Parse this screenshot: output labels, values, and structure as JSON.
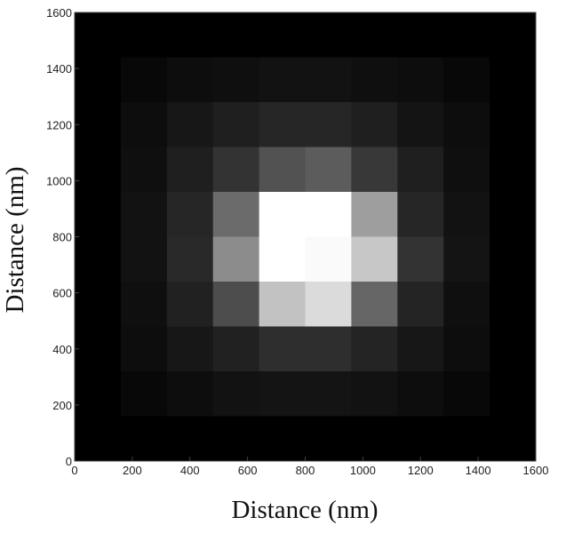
{
  "chart_data": {
    "type": "heatmap",
    "title": "",
    "xlabel": "Distance (nm)",
    "ylabel": "Distance (nm)",
    "xlim": [
      0,
      1600
    ],
    "ylim": [
      0,
      1600
    ],
    "x_ticks": [
      "0",
      "200",
      "400",
      "600",
      "800",
      "1000",
      "1200",
      "1400",
      "1600"
    ],
    "y_ticks": [
      "0",
      "200",
      "400",
      "600",
      "800",
      "1000",
      "1200",
      "1400",
      "1600"
    ],
    "grid": false,
    "legend": "none",
    "colormap": "gray",
    "cell_size_nm": 160,
    "x_centers": [
      80,
      240,
      400,
      560,
      720,
      880,
      1040,
      1200,
      1360,
      1520
    ],
    "y_centers": [
      1520,
      1360,
      1200,
      1040,
      880,
      720,
      560,
      400,
      240,
      80
    ],
    "intensity": [
      [
        0,
        0,
        0,
        0,
        0,
        0,
        0,
        0,
        0,
        0
      ],
      [
        0,
        3,
        5,
        6,
        7,
        7,
        6,
        5,
        3,
        0
      ],
      [
        0,
        5,
        9,
        12,
        15,
        15,
        12,
        8,
        5,
        0
      ],
      [
        0,
        6,
        12,
        20,
        32,
        36,
        22,
        12,
        6,
        0
      ],
      [
        0,
        7,
        15,
        42,
        100,
        100,
        62,
        15,
        7,
        0
      ],
      [
        0,
        7,
        16,
        55,
        100,
        98,
        78,
        20,
        8,
        0
      ],
      [
        0,
        6,
        13,
        30,
        76,
        86,
        40,
        14,
        6,
        0
      ],
      [
        0,
        5,
        9,
        13,
        18,
        18,
        14,
        9,
        5,
        0
      ],
      [
        0,
        3,
        5,
        7,
        8,
        8,
        7,
        5,
        3,
        0
      ],
      [
        0,
        0,
        0,
        0,
        0,
        0,
        0,
        0,
        0,
        0
      ]
    ],
    "intensity_range": [
      0,
      100
    ]
  }
}
